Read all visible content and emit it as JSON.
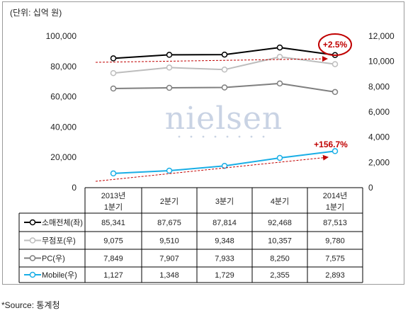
{
  "unit_label": "(단위: 십억 원)",
  "source": "*Source: 통계청",
  "watermark": "nielsen",
  "colors": {
    "total": "#000000",
    "nonstore": "#bdbdbd",
    "pc": "#7f7f7f",
    "mobile": "#19aee6",
    "annotation": "#c00000"
  },
  "chart_data": {
    "type": "line",
    "categories": [
      "2013년\n1분기",
      "2분기",
      "3분기",
      "4분기",
      "2014년\n1분기"
    ],
    "y_left": {
      "ylim": [
        0,
        100000
      ],
      "ticks": [
        "0",
        "20,000",
        "40,000",
        "60,000",
        "80,000",
        "100,000"
      ]
    },
    "y_right": {
      "ylim": [
        0,
        12000
      ],
      "ticks": [
        "0",
        "2,000",
        "4,000",
        "6,000",
        "8,000",
        "10,000",
        "12,000"
      ]
    },
    "series": [
      {
        "name": "소매전체(좌)",
        "axis": "left",
        "values": [
          85341,
          87675,
          87814,
          92468,
          87513
        ],
        "labels": [
          "85,341",
          "87,675",
          "87,814",
          "92,468",
          "87,513"
        ]
      },
      {
        "name": "무점포(우)",
        "axis": "right",
        "values": [
          9075,
          9510,
          9348,
          10357,
          9780
        ],
        "labels": [
          "9,075",
          "9,510",
          "9,348",
          "10,357",
          "9,780"
        ]
      },
      {
        "name": "PC(우)",
        "axis": "right",
        "values": [
          7849,
          7907,
          7933,
          8250,
          7575
        ],
        "labels": [
          "7,849",
          "7,907",
          "7,933",
          "8,250",
          "7,575"
        ]
      },
      {
        "name": "Mobile(우)",
        "axis": "right",
        "values": [
          1127,
          1348,
          1729,
          2355,
          2893
        ],
        "labels": [
          "1,127",
          "1,348",
          "1,729",
          "2,355",
          "2,893"
        ]
      }
    ],
    "annotations": [
      "+2.5%",
      "+156.7%"
    ],
    "grid": false,
    "legend": "data-table"
  }
}
